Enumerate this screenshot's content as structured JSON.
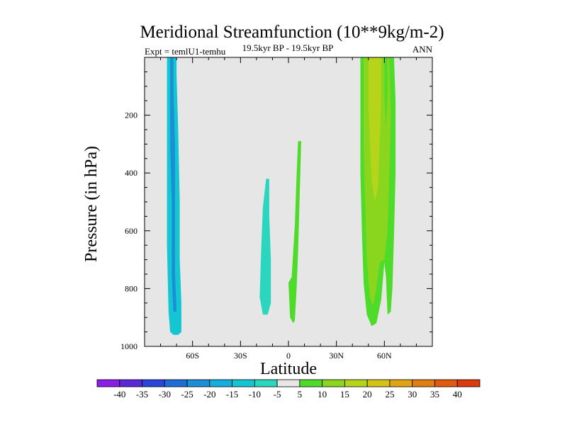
{
  "chart_data": {
    "type": "contour",
    "title": "Meridional Streamfunction (10**9kg/m-2)",
    "subtitle": "19.5kyr BP - 19.5kyr BP",
    "left_label": "Expt = temlU1-temhu",
    "right_label": "ANN",
    "xlabel": "Latitude",
    "ylabel": "Pressure (in hPa)",
    "xlim": [
      -90,
      90
    ],
    "ylim": [
      1000,
      0
    ],
    "x_ticks": [
      {
        "value": -60,
        "label": "60S"
      },
      {
        "value": -30,
        "label": "30S"
      },
      {
        "value": 0,
        "label": "0"
      },
      {
        "value": 30,
        "label": "30N"
      },
      {
        "value": 60,
        "label": "60N"
      }
    ],
    "y_ticks": [
      {
        "value": 200,
        "label": "200"
      },
      {
        "value": 400,
        "label": "400"
      },
      {
        "value": 600,
        "label": "600"
      },
      {
        "value": 800,
        "label": "800"
      },
      {
        "value": 1000,
        "label": "1000"
      }
    ],
    "background_color": "#e6e6e6",
    "colorbar": {
      "levels": [
        -40,
        -35,
        -30,
        -25,
        -20,
        -15,
        -10,
        -5,
        5,
        10,
        15,
        20,
        25,
        30,
        35,
        40
      ],
      "labels": [
        "-40",
        "-35",
        "-30",
        "-25",
        "-20",
        "-15",
        "-10",
        "-5",
        "5",
        "10",
        "15",
        "20",
        "25",
        "30",
        "35",
        "40"
      ],
      "colors": [
        "#8a1ee6",
        "#5a28d6",
        "#2a46d8",
        "#1f6ed8",
        "#1a8fd6",
        "#14aede",
        "#13c6d2",
        "#2ad6be",
        "#e6e6e6",
        "#4fdb2a",
        "#8ad61e",
        "#b6d41a",
        "#d6c214",
        "#e0a314",
        "#e07e12",
        "#e05a10",
        "#dc3a0c"
      ]
    },
    "regions": [
      {
        "name": "southern-outer",
        "level_index": 6,
        "points": [
          [
            -76,
            0
          ],
          [
            -70,
            0
          ],
          [
            -70,
            60
          ],
          [
            -69,
            250
          ],
          [
            -68,
            500
          ],
          [
            -68,
            700
          ],
          [
            -67,
            850
          ],
          [
            -67,
            950
          ],
          [
            -69,
            960
          ],
          [
            -72,
            960
          ],
          [
            -74,
            950
          ],
          [
            -75,
            880
          ],
          [
            -76,
            650
          ],
          [
            -76,
            400
          ],
          [
            -76,
            150
          ]
        ]
      },
      {
        "name": "southern-core",
        "level_index": 4,
        "points": [
          [
            -74,
            0
          ],
          [
            -72,
            0
          ],
          [
            -72,
            100
          ],
          [
            -71,
            300
          ],
          [
            -71,
            500
          ],
          [
            -71,
            750
          ],
          [
            -70,
            880
          ],
          [
            -72,
            880
          ],
          [
            -73,
            750
          ],
          [
            -73,
            500
          ],
          [
            -74,
            300
          ],
          [
            -74,
            100
          ]
        ]
      },
      {
        "name": "tropical-negative",
        "level_index": 7,
        "points": [
          [
            -14,
            420
          ],
          [
            -12,
            420
          ],
          [
            -12,
            550
          ],
          [
            -11,
            700
          ],
          [
            -11,
            850
          ],
          [
            -13,
            890
          ],
          [
            -16,
            890
          ],
          [
            -18,
            830
          ],
          [
            -17,
            650
          ],
          [
            -16,
            520
          ]
        ]
      },
      {
        "name": "tropical-positive",
        "level_index": 9,
        "points": [
          [
            6,
            290
          ],
          [
            8,
            290
          ],
          [
            7,
            480
          ],
          [
            6,
            680
          ],
          [
            5,
            810
          ],
          [
            4,
            910
          ],
          [
            3,
            920
          ],
          [
            1,
            900
          ],
          [
            0,
            780
          ],
          [
            2,
            760
          ],
          [
            4,
            580
          ],
          [
            5,
            420
          ]
        ]
      },
      {
        "name": "northern-outer",
        "level_index": 9,
        "points": [
          [
            45,
            0
          ],
          [
            66,
            0
          ],
          [
            67,
            150
          ],
          [
            67,
            400
          ],
          [
            66,
            620
          ],
          [
            65,
            800
          ],
          [
            64,
            880
          ],
          [
            62,
            890
          ],
          [
            61,
            760
          ],
          [
            60,
            710
          ],
          [
            58,
            840
          ],
          [
            55,
            920
          ],
          [
            52,
            930
          ],
          [
            49,
            890
          ],
          [
            47,
            780
          ],
          [
            46,
            620
          ],
          [
            45,
            400
          ],
          [
            45,
            150
          ]
        ]
      },
      {
        "name": "northern-mid",
        "level_index": 10,
        "points": [
          [
            47,
            0
          ],
          [
            63,
            0
          ],
          [
            64,
            200
          ],
          [
            63,
            420
          ],
          [
            62,
            600
          ],
          [
            60,
            700
          ],
          [
            57,
            710
          ],
          [
            55,
            800
          ],
          [
            53,
            860
          ],
          [
            51,
            830
          ],
          [
            49,
            700
          ],
          [
            48,
            500
          ],
          [
            47,
            300
          ]
        ]
      },
      {
        "name": "northern-core",
        "level_index": 11,
        "points": [
          [
            50,
            0
          ],
          [
            58,
            0
          ],
          [
            58,
            150
          ],
          [
            57,
            300
          ],
          [
            56,
            450
          ],
          [
            54,
            500
          ],
          [
            52,
            420
          ],
          [
            51,
            300
          ],
          [
            50,
            150
          ]
        ]
      },
      {
        "name": "northern-gap",
        "level_index": 9,
        "points": [
          [
            60,
            0
          ],
          [
            62,
            0
          ],
          [
            62,
            120
          ],
          [
            61,
            250
          ],
          [
            60,
            120
          ]
        ]
      }
    ]
  }
}
